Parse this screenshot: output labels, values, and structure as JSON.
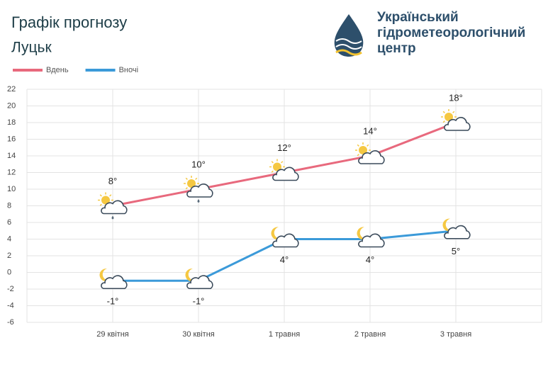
{
  "logo": {
    "lines": [
      "Український",
      "гідрометеорологічний",
      "центр"
    ]
  },
  "chart_data": {
    "type": "line",
    "title": "Графік прогнозу",
    "subtitle": "Луцьк",
    "categories": [
      "29 квітня",
      "30 квітня",
      "1 травня",
      "2 травня",
      "3 травня"
    ],
    "series": [
      {
        "name": "Вдень",
        "color": "#e8697d",
        "values": [
          8,
          10,
          12,
          14,
          18
        ],
        "value_labels": [
          "8°",
          "10°",
          "12°",
          "14°",
          "18°"
        ]
      },
      {
        "name": "Вночі",
        "color": "#3b9ad9",
        "values": [
          -1,
          -1,
          4,
          4,
          5
        ],
        "value_labels": [
          "-1°",
          "-1°",
          "4°",
          "4°",
          "5°"
        ]
      }
    ],
    "ylim": [
      -6,
      22
    ],
    "yticks": [
      -6,
      -4,
      -2,
      0,
      2,
      4,
      6,
      8,
      10,
      12,
      14,
      16,
      18,
      20,
      22
    ],
    "grid": true
  }
}
